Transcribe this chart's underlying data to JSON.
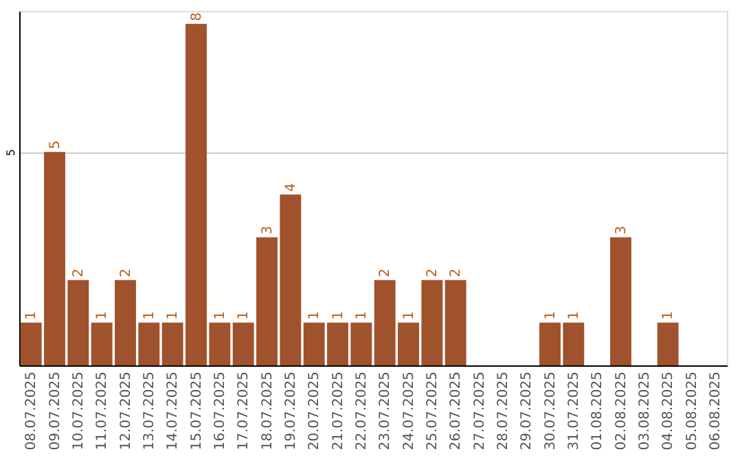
{
  "chart_data": {
    "type": "bar",
    "categories": [
      "08.07.2025",
      "09.07.2025",
      "10.07.2025",
      "11.07.2025",
      "12.07.2025",
      "13.07.2025",
      "14.07.2025",
      "15.07.2025",
      "16.07.2025",
      "17.07.2025",
      "18.07.2025",
      "19.07.2025",
      "20.07.2025",
      "21.07.2025",
      "22.07.2025",
      "23.07.2025",
      "24.07.2025",
      "25.07.2025",
      "26.07.2025",
      "27.07.2025",
      "28.07.2025",
      "29.07.2025",
      "30.07.2025",
      "31.07.2025",
      "01.08.2025",
      "02.08.2025",
      "03.08.2025",
      "04.08.2025",
      "05.08.2025",
      "06.08.2025"
    ],
    "values": [
      1,
      5,
      2,
      1,
      2,
      1,
      1,
      8,
      1,
      1,
      3,
      4,
      1,
      1,
      1,
      2,
      1,
      2,
      2,
      0,
      0,
      0,
      1,
      1,
      0,
      3,
      0,
      1,
      0,
      0
    ],
    "value_labels": [
      "1",
      "5",
      "2",
      "1",
      "2",
      "1",
      "1",
      "8",
      "1",
      "1",
      "3",
      "4",
      "1",
      "1",
      "1",
      "2",
      "1",
      "2",
      "2",
      null,
      null,
      null,
      "1",
      "1",
      null,
      "3",
      null,
      "1",
      null,
      null
    ],
    "color": "#a0522d",
    "ylim": [
      0,
      8.3
    ],
    "yticks": [
      5
    ],
    "grid": "y"
  }
}
